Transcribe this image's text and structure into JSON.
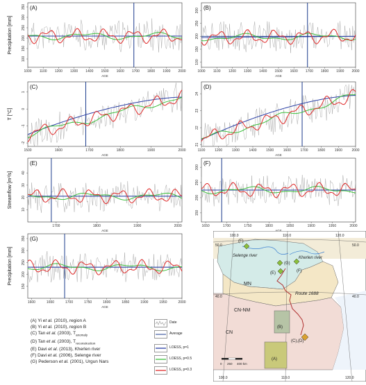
{
  "colors": {
    "data": "#a0a0a0",
    "average": "#1a3a8c",
    "loess1": "#2a3fa5",
    "loess05": "#3bbf3b",
    "loess03": "#e02a2a"
  },
  "chart_data": [
    {
      "type": "line",
      "panel_label": "(A)",
      "ylabel": "Precipitation [mm]",
      "xlabel": "AGE",
      "xlim": [
        1000,
        2000
      ],
      "xticks": [
        "1000",
        "1100",
        "1200",
        "1300",
        "1400",
        "1500",
        "1600",
        "1700",
        "1800",
        "1900",
        "2000"
      ],
      "vline_x": 1688,
      "average": 210,
      "ylim": [
        60,
        370
      ],
      "yticks": [
        "100",
        "150",
        "200",
        "250",
        "300",
        "350"
      ],
      "trend_start": 210,
      "trend_end": 210
    },
    {
      "type": "line",
      "panel_label": "(B)",
      "xlabel": "AGE",
      "xlim": [
        1000,
        2000
      ],
      "xticks": [
        "1000",
        "1100",
        "1200",
        "1300",
        "1400",
        "1500",
        "1600",
        "1700",
        "1800",
        "1900",
        "2000"
      ],
      "vline_x": 1688,
      "average": 200,
      "ylim": [
        80,
        330
      ],
      "yticks": [
        "100",
        "150",
        "200",
        "250",
        "300"
      ],
      "trend_start": 195,
      "trend_end": 200
    },
    {
      "type": "line",
      "panel_label": "(C)",
      "ylabel": "T [°C]",
      "xlabel": "AGE",
      "xlim": [
        1500,
        2000
      ],
      "xticks": [
        "1500",
        "1600",
        "1700",
        "1800",
        "1900",
        "2000"
      ],
      "vline_x": 1688,
      "ylim": [
        -2.2,
        1.6
      ],
      "yticks": [
        "-2",
        "-1",
        "0",
        "1"
      ],
      "trend_start": -1.5,
      "trend_end": 0.7
    },
    {
      "type": "line",
      "panel_label": "(D)",
      "xlabel": "AGE",
      "xlim": [
        1100,
        2000
      ],
      "xticks": [
        "1100",
        "1200",
        "1300",
        "1400",
        "1500",
        "1600",
        "1700",
        "1800",
        "1900",
        "2000"
      ],
      "vline_x": 1688,
      "ylim": [
        20.9,
        24.7
      ],
      "yticks": [
        "21",
        "22",
        "23",
        "24"
      ],
      "trend_start": 21.3,
      "trend_end": 23.9
    },
    {
      "type": "line",
      "panel_label": "(E)",
      "ylabel": "Streamflow [m³/s]",
      "xlabel": "AGE",
      "xlim": [
        1630,
        2010
      ],
      "xticks": [
        "1700",
        "1800",
        "1900",
        "2000"
      ],
      "vline_x": 1688,
      "average": 21,
      "ylim": [
        0,
        52
      ],
      "yticks": [
        "10",
        "20",
        "30",
        "40"
      ],
      "trend_start": 21,
      "trend_end": 21
    },
    {
      "type": "line",
      "panel_label": "(F)",
      "xlabel": "AGE",
      "xlim": [
        1640,
        2005
      ],
      "xticks": [
        "1650",
        "1700",
        "1750",
        "1800",
        "1850",
        "1900",
        "1950",
        "2000"
      ],
      "vline_x": 1688,
      "average": 225,
      "ylim": [
        120,
        330
      ],
      "yticks": [
        "150",
        "200",
        "250",
        "300"
      ],
      "trend_start": 225,
      "trend_end": 225
    },
    {
      "type": "line",
      "panel_label": "(G)",
      "ylabel": "Precipitation [mm]",
      "xlabel": "AGE",
      "xlim": [
        1590,
        2000
      ],
      "xticks": [
        "1600",
        "1650",
        "1700",
        "1750",
        "1800",
        "1850",
        "1900",
        "1950",
        "2000"
      ],
      "vline_x": 1688,
      "average": 230,
      "ylim": [
        100,
        370
      ],
      "yticks": [
        "150",
        "200",
        "250",
        "300",
        "350"
      ],
      "trend_start": 230,
      "trend_end": 230
    }
  ],
  "sources": [
    {
      "label": "(A)",
      "author": "Yi ",
      "etal": "et al.",
      "rest": " (2010), region A"
    },
    {
      "label": "(B)",
      "author": "Yi ",
      "etal": "et al.",
      "rest": " (2010), region B"
    },
    {
      "label": "(C)",
      "author": "Tan ",
      "etal": "et al.",
      "rest": " (2003), T",
      "sub": "anomaly"
    },
    {
      "label": "(D)",
      "author": "Tan ",
      "etal": "et al.",
      "rest": " (2003), T",
      "sub": "reconstruction"
    },
    {
      "label": "(E)",
      "author": "Davi ",
      "etal": "et al.",
      "rest": " (2013), Kherlen river"
    },
    {
      "label": "(F)",
      "author": "Davi ",
      "etal": "et al.",
      "rest": " (2006), Selenge river"
    },
    {
      "label": "(G)",
      "author": "Pederson ",
      "etal": "et al.",
      "rest": " (2001), Urgun Nars"
    }
  ],
  "legend": {
    "data": "Date",
    "average": "Average",
    "loess1": "LOESS, p=1",
    "loess05": "LOESS, p=0.5",
    "loess03": "LOESS, p=0.3"
  },
  "map": {
    "top_lon": [
      "100.0",
      "110.0",
      "120.0"
    ],
    "bottom_lon": [
      "100.0",
      "110.0",
      "120.0"
    ],
    "lat": [
      "50.0",
      "40.0"
    ],
    "regions": {
      "mn": "MN",
      "cn_nm": "CN-NM",
      "cn": "CN"
    },
    "rivers": {
      "selenge": "Selenge river",
      "kherlen": "Kherlen river"
    },
    "route": "Route 1688",
    "boxes": {
      "a": "(A)",
      "b": "(B)",
      "cd": "(C),(D)"
    },
    "points": {
      "e": "(E)",
      "f": "(F)",
      "g": "(G)"
    },
    "scale": [
      "0",
      "250",
      "400 km"
    ]
  }
}
